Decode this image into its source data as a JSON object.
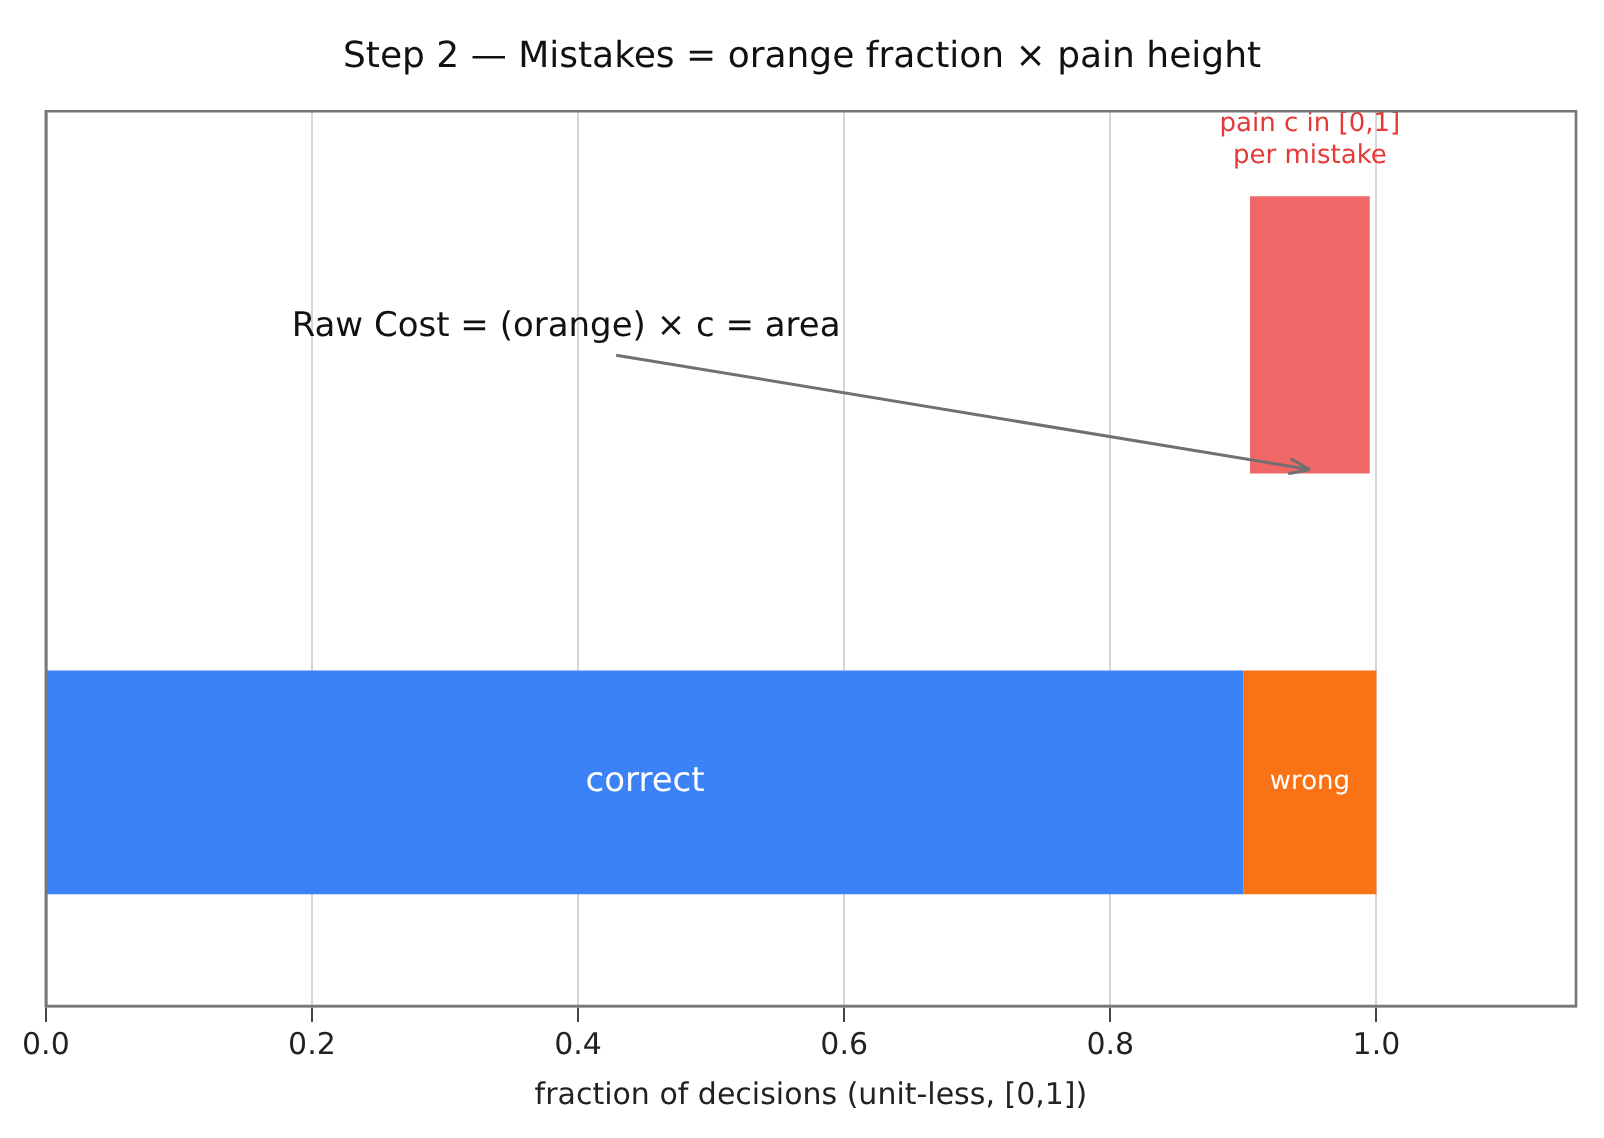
{
  "chart_data": {
    "type": "bar",
    "orientation": "horizontal",
    "stacked": true,
    "title": "Step 2 — Mistakes = orange fraction × pain height",
    "xlabel": "fraction of decisions (unit-less, [0,1])",
    "categories": [
      null,
      null
    ],
    "series": [
      {
        "name": "correct",
        "color": "#3b82f6",
        "values": [
          null,
          0.9
        ]
      },
      {
        "name": "wrong",
        "color": "#f97316",
        "values": [
          null,
          0.1
        ]
      },
      {
        "color": "#ef6767",
        "values": [
          0.09,
          null
        ],
        "base": [
          0.905,
          null
        ]
      }
    ],
    "xlim": [
      0,
      1.15
    ],
    "xticks": [
      {
        "value": 0,
        "label": "0.0"
      },
      {
        "value": 0.2,
        "label": "0.2"
      },
      {
        "value": 0.4,
        "label": "0.4"
      },
      {
        "value": 0.6,
        "label": "0.6"
      },
      {
        "value": 0.8,
        "label": "0.8"
      },
      {
        "value": 1,
        "label": "1.0"
      }
    ],
    "grid": "x",
    "legend": false,
    "annotations": [
      "Raw Cost = (orange) × c = area",
      "pain c in [0,1]\nper mistake"
    ]
  }
}
